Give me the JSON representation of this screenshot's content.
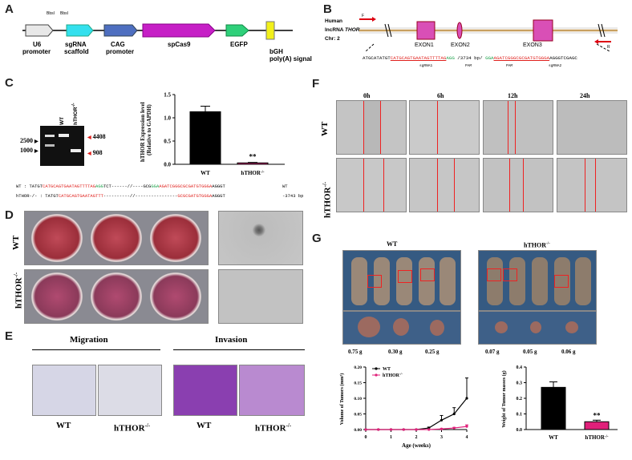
{
  "panels": {
    "A": "A",
    "B": "B",
    "C": "C",
    "D": "D",
    "E": "E",
    "F": "F",
    "G": "G"
  },
  "panelA": {
    "bbsi1": "BbsI",
    "bbsi2": "BbsI",
    "u6": "U6",
    "u6b": "promoter",
    "sgrna": "sgRNA",
    "sgrnab": "scaffold",
    "cag": "CAG",
    "cagb": "promoter",
    "cas9": "spCas9",
    "egfp": "EGFP",
    "bgh": "bGH",
    "bghb": "poly(A) signal"
  },
  "panelB": {
    "human": "Human",
    "lncrna": "lncRNA",
    "thor": "THOR",
    "chr": "Chr: 2",
    "f": "F",
    "r": "R",
    "exon1": "EXON1",
    "exon2": "EXON2",
    "exon3": "EXON3",
    "seq_a": "ATGCATATGT",
    "seq_b": "CATGCAGTGAATAGTTTTAG",
    "seq_c": "AGG",
    "seq_d": "/3734 bp/",
    "seq_e": "GGA",
    "seq_f": "AGATCGGGCGCGATGTGGGA",
    "seq_g": "AGGGTCGAGC",
    "sg1": "sgRNA1",
    "pam1": "PAM",
    "pam2": "PAM",
    "sg2": "sgRNA2"
  },
  "panelC": {
    "wt": "WT",
    "hthor": "hTHOR",
    "hthor_sup": "-/-",
    "m2500": "2500",
    "m1000": "1000",
    "b4408": "4408",
    "b908": "908",
    "ylabel1": "hTHOR Expression level",
    "ylabel2": "(Relative to GAPDH)",
    "yticks": [
      "0.0",
      "0.5",
      "1.0",
      "1.5"
    ],
    "sig": "**",
    "seq_wt_prefix": "WT : TATGT",
    "seq_wt_red": "CATGCAGTGAATAGTTTTAG",
    "seq_wt_grn": "AGG",
    "seq_wt_mid": "TCT------//----GCG",
    "seq_wt_grn2": "GGA",
    "seq_wt_red2": "AGATCGGGCGCGATGTGGGA",
    "seq_wt_end": "AGGGT",
    "seq_wt_tag": "WT",
    "seq_ko_prefix": "hTHOR-/- : TATGT",
    "seq_ko_red": "CATGCAGTGAATAGTTT",
    "seq_ko_mid": "----------//----------------",
    "seq_ko_red2": "GCGCGATGTGGGA",
    "seq_ko_end": "AGGGT",
    "seq_ko_tag": "-3743 bp"
  },
  "chart_data": [
    {
      "type": "bar",
      "categories": [
        "WT",
        "hTHOR-/-"
      ],
      "values": [
        1.13,
        0.03
      ],
      "errors": [
        0.12,
        0.01
      ],
      "ylabel": "hTHOR Expression level (Relative to GAPDH)",
      "ylim": [
        0,
        1.5
      ],
      "colors": [
        "#000000",
        "#e0207a"
      ]
    },
    {
      "type": "line",
      "x": [
        0,
        0.5,
        1,
        1.5,
        2,
        2.5,
        3,
        3.5,
        4
      ],
      "series": [
        {
          "name": "WT",
          "values": [
            0,
            0,
            0,
            0,
            0,
            0.005,
            0.03,
            0.05,
            0.1
          ],
          "errors": [
            0,
            0,
            0,
            0,
            0,
            0.003,
            0.015,
            0.02,
            0.065
          ],
          "color": "#000000"
        },
        {
          "name": "hTHOR-/-",
          "values": [
            0,
            0,
            0,
            0,
            0,
            0,
            0.002,
            0.005,
            0.01
          ],
          "errors": [
            0,
            0,
            0,
            0,
            0,
            0,
            0.001,
            0.002,
            0.005
          ],
          "color": "#e0207a"
        }
      ],
      "xlabel": "Age (weeks)",
      "ylabel": "Volume of Tumors (mm³)",
      "xticks": [
        "0",
        "1",
        "2",
        "3",
        "4"
      ],
      "yticks": [
        "0.00",
        "0.05",
        "0.10",
        "0.15",
        "0.20"
      ],
      "ylim": [
        0,
        0.2
      ],
      "legend": "top-left"
    },
    {
      "type": "bar",
      "categories": [
        "WT",
        "hTHOR-/-"
      ],
      "values": [
        0.27,
        0.05
      ],
      "errors": [
        0.035,
        0.01
      ],
      "ylabel": "Weight of Tumor masses (g)",
      "yticks": [
        "0.0",
        "0.1",
        "0.2",
        "0.3",
        "0.4"
      ],
      "ylim": [
        0,
        0.4
      ],
      "colors": [
        "#000000",
        "#e0207a"
      ],
      "sig": "**"
    }
  ],
  "panelD": {
    "wt": "WT",
    "ko": "hTHOR",
    "ko_sup": "-/-"
  },
  "panelE": {
    "migration": "Migration",
    "invasion": "Invasion",
    "labels": [
      "WT",
      "hTHOR",
      "WT",
      "hTHOR"
    ],
    "sup": "-/-"
  },
  "panelF": {
    "times": [
      "0h",
      "6h",
      "12h",
      "24h"
    ],
    "wt": "WT",
    "ko": "hTHOR",
    "ko_sup": "-/-"
  },
  "panelG": {
    "wt": "WT",
    "ko": "hTHOR",
    "ko_sup": "-/-",
    "weights_wt": [
      "0.75 g",
      "0.30 g",
      "0.25 g"
    ],
    "weights_ko": [
      "0.07 g",
      "0.05 g",
      "0.06 g"
    ],
    "legend_wt": "WT",
    "legend_ko": "hTHOR-/-",
    "bar_x_wt": "WT",
    "bar_x_ko": "hTHOR-/-",
    "sig": "**"
  }
}
